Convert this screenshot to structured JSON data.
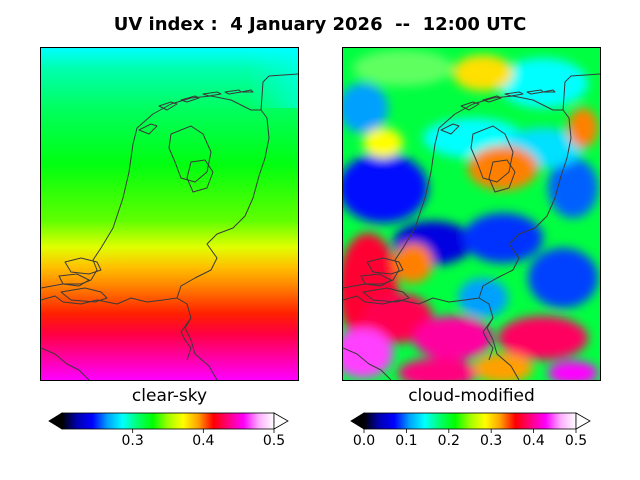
{
  "title": "UV index :  4 January 2026  --  12:00 UTC",
  "panels": [
    {
      "label": "clear-sky",
      "colorbar": {
        "min": 0.2,
        "max": 0.5,
        "ticks": [
          "0.3",
          "0.4",
          "0.5"
        ],
        "extend": "both"
      }
    },
    {
      "label": "cloud-modified",
      "colorbar": {
        "min": 0.0,
        "max": 0.5,
        "ticks": [
          "0.0",
          "0.1",
          "0.2",
          "0.3",
          "0.4",
          "0.5"
        ],
        "extend": "both"
      }
    }
  ],
  "colormap": [
    "#000000",
    "#0000b0",
    "#0000ff",
    "#00a0ff",
    "#00ffff",
    "#00ff70",
    "#00ff00",
    "#a0ff00",
    "#ffff00",
    "#ffa000",
    "#ff0000",
    "#ff0080",
    "#ff00ff",
    "#ffb0ff",
    "#ffffff"
  ],
  "coastline_color": "#3a3a3a"
}
